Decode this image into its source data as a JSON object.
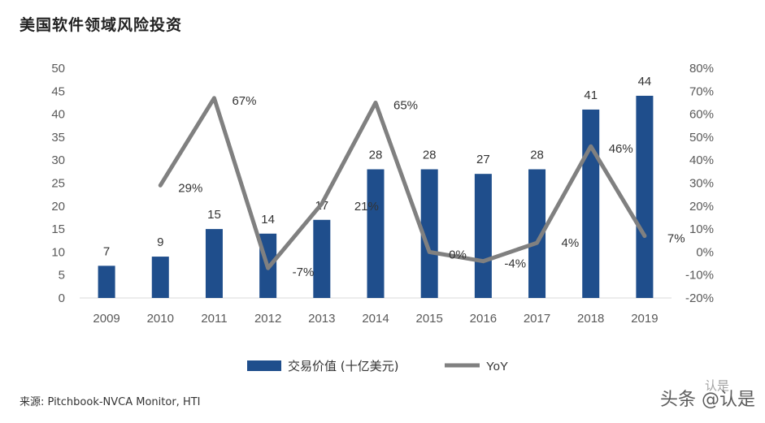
{
  "title": "美国软件领域风险投资",
  "source": "来源: Pitchbook-NVCA Monitor, HTI",
  "watermark": "头条 @认是",
  "watermark_logo": "认是",
  "colors": {
    "bar": "#1f4e8c",
    "line": "#808080",
    "axis": "#595959",
    "grid": "#d9d9d9"
  },
  "chart_data": {
    "type": "bar",
    "categories": [
      "2009",
      "2010",
      "2011",
      "2012",
      "2013",
      "2014",
      "2015",
      "2016",
      "2017",
      "2018",
      "2019"
    ],
    "series": [
      {
        "name": "交易价值 (十亿美元)",
        "type": "bar",
        "axis": "left",
        "values": [
          7,
          9,
          15,
          14,
          17,
          28,
          28,
          27,
          28,
          41,
          44
        ]
      },
      {
        "name": "YoY",
        "type": "line",
        "axis": "right",
        "values": [
          null,
          29,
          67,
          -7,
          21,
          65,
          0,
          -4,
          4,
          46,
          7
        ],
        "labels": [
          "",
          "29%",
          "67%",
          "-7%",
          "21%",
          "65%",
          "0%",
          "-4%",
          "4%",
          "46%",
          "7%"
        ]
      }
    ],
    "y_left": {
      "min": 0,
      "max": 50,
      "step": 5,
      "ticks": [
        "0",
        "5",
        "10",
        "15",
        "20",
        "25",
        "30",
        "35",
        "40",
        "45",
        "50"
      ]
    },
    "y_right": {
      "min": -20,
      "max": 80,
      "step": 10,
      "ticks": [
        "-20%",
        "-10%",
        "0%",
        "10%",
        "20%",
        "30%",
        "40%",
        "50%",
        "60%",
        "70%",
        "80%"
      ]
    },
    "grid": false,
    "legend": {
      "position": "bottom"
    }
  }
}
